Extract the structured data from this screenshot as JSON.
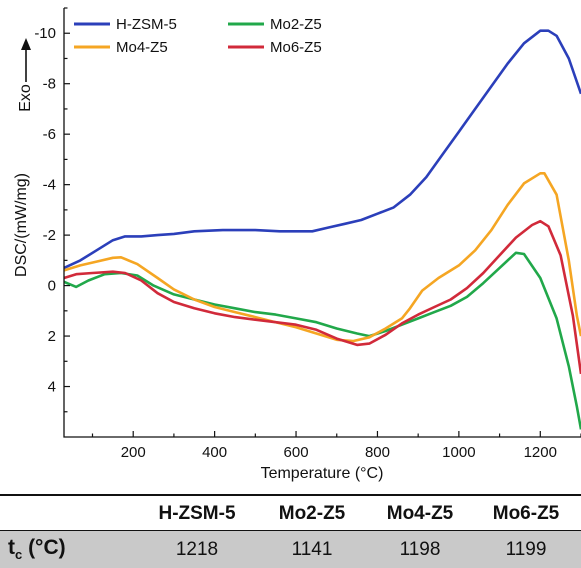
{
  "chart_data": {
    "type": "line",
    "xlabel": "Temperature (°C)",
    "ylabel": "DSC/(mW/mg)",
    "annotation": "Exo",
    "xlim": [
      30,
      1300
    ],
    "ylim": [
      6,
      -11
    ],
    "y_inverted": true,
    "x_ticks": [
      200,
      400,
      600,
      800,
      1000,
      1200
    ],
    "y_ticks": [
      -10,
      -8,
      -6,
      -4,
      -2,
      0,
      2,
      4
    ],
    "legend_position": "top-left",
    "grid": false,
    "series": [
      {
        "name": "H-ZSM-5",
        "color": "#2b3fba",
        "points": [
          [
            30,
            -0.7
          ],
          [
            70,
            -1.0
          ],
          [
            110,
            -1.4
          ],
          [
            150,
            -1.8
          ],
          [
            180,
            -1.95
          ],
          [
            220,
            -1.95
          ],
          [
            260,
            -2.0
          ],
          [
            300,
            -2.05
          ],
          [
            350,
            -2.15
          ],
          [
            420,
            -2.2
          ],
          [
            500,
            -2.2
          ],
          [
            560,
            -2.15
          ],
          [
            600,
            -2.15
          ],
          [
            640,
            -2.15
          ],
          [
            680,
            -2.3
          ],
          [
            720,
            -2.45
          ],
          [
            760,
            -2.6
          ],
          [
            800,
            -2.85
          ],
          [
            840,
            -3.1
          ],
          [
            880,
            -3.6
          ],
          [
            920,
            -4.3
          ],
          [
            960,
            -5.2
          ],
          [
            1000,
            -6.1
          ],
          [
            1040,
            -7.0
          ],
          [
            1080,
            -7.9
          ],
          [
            1120,
            -8.8
          ],
          [
            1160,
            -9.6
          ],
          [
            1200,
            -10.1
          ],
          [
            1220,
            -10.1
          ],
          [
            1240,
            -9.9
          ],
          [
            1270,
            -9.0
          ],
          [
            1300,
            -7.6
          ]
        ]
      },
      {
        "name": "Mo2-Z5",
        "color": "#21a84a",
        "points": [
          [
            30,
            -0.15
          ],
          [
            60,
            0.05
          ],
          [
            90,
            -0.2
          ],
          [
            130,
            -0.45
          ],
          [
            170,
            -0.5
          ],
          [
            210,
            -0.4
          ],
          [
            250,
            0.0
          ],
          [
            300,
            0.35
          ],
          [
            350,
            0.55
          ],
          [
            400,
            0.75
          ],
          [
            450,
            0.9
          ],
          [
            500,
            1.05
          ],
          [
            550,
            1.15
          ],
          [
            600,
            1.3
          ],
          [
            650,
            1.45
          ],
          [
            700,
            1.7
          ],
          [
            750,
            1.9
          ],
          [
            780,
            2.0
          ],
          [
            820,
            1.8
          ],
          [
            860,
            1.55
          ],
          [
            900,
            1.3
          ],
          [
            940,
            1.05
          ],
          [
            980,
            0.8
          ],
          [
            1020,
            0.45
          ],
          [
            1060,
            -0.1
          ],
          [
            1100,
            -0.7
          ],
          [
            1140,
            -1.3
          ],
          [
            1160,
            -1.25
          ],
          [
            1200,
            -0.3
          ],
          [
            1240,
            1.3
          ],
          [
            1270,
            3.2
          ],
          [
            1290,
            4.8
          ],
          [
            1300,
            5.7
          ]
        ]
      },
      {
        "name": "Mo4-Z5",
        "color": "#f5a623",
        "points": [
          [
            30,
            -0.6
          ],
          [
            70,
            -0.8
          ],
          [
            110,
            -0.95
          ],
          [
            150,
            -1.1
          ],
          [
            170,
            -1.12
          ],
          [
            210,
            -0.85
          ],
          [
            260,
            -0.3
          ],
          [
            300,
            0.15
          ],
          [
            350,
            0.55
          ],
          [
            400,
            0.85
          ],
          [
            450,
            1.05
          ],
          [
            500,
            1.25
          ],
          [
            550,
            1.45
          ],
          [
            600,
            1.65
          ],
          [
            650,
            1.9
          ],
          [
            700,
            2.15
          ],
          [
            740,
            2.2
          ],
          [
            780,
            2.05
          ],
          [
            820,
            1.7
          ],
          [
            860,
            1.3
          ],
          [
            880,
            0.9
          ],
          [
            910,
            0.2
          ],
          [
            950,
            -0.3
          ],
          [
            1000,
            -0.8
          ],
          [
            1040,
            -1.4
          ],
          [
            1080,
            -2.2
          ],
          [
            1120,
            -3.2
          ],
          [
            1160,
            -4.05
          ],
          [
            1200,
            -4.45
          ],
          [
            1210,
            -4.45
          ],
          [
            1240,
            -3.6
          ],
          [
            1270,
            -1.0
          ],
          [
            1290,
            1.2
          ],
          [
            1300,
            2.0
          ]
        ]
      },
      {
        "name": "Mo6-Z5",
        "color": "#d12a3a",
        "points": [
          [
            30,
            -0.3
          ],
          [
            60,
            -0.45
          ],
          [
            100,
            -0.5
          ],
          [
            150,
            -0.55
          ],
          [
            180,
            -0.5
          ],
          [
            220,
            -0.2
          ],
          [
            260,
            0.3
          ],
          [
            300,
            0.65
          ],
          [
            350,
            0.9
          ],
          [
            400,
            1.1
          ],
          [
            450,
            1.25
          ],
          [
            500,
            1.35
          ],
          [
            550,
            1.45
          ],
          [
            600,
            1.55
          ],
          [
            650,
            1.75
          ],
          [
            700,
            2.1
          ],
          [
            750,
            2.35
          ],
          [
            780,
            2.3
          ],
          [
            820,
            1.95
          ],
          [
            860,
            1.5
          ],
          [
            900,
            1.15
          ],
          [
            940,
            0.85
          ],
          [
            980,
            0.55
          ],
          [
            1020,
            0.1
          ],
          [
            1060,
            -0.5
          ],
          [
            1100,
            -1.2
          ],
          [
            1140,
            -1.9
          ],
          [
            1180,
            -2.4
          ],
          [
            1200,
            -2.55
          ],
          [
            1220,
            -2.35
          ],
          [
            1250,
            -1.2
          ],
          [
            1280,
            1.2
          ],
          [
            1300,
            3.5
          ]
        ]
      }
    ]
  },
  "table": {
    "headers": [
      "H-ZSM-5",
      "Mo2-Z5",
      "Mo4-Z5",
      "Mo6-Z5"
    ],
    "row_label": "t",
    "row_label_sub": "c",
    "row_label_unit": " (°C)",
    "values": [
      "1218",
      "1141",
      "1198",
      "1199"
    ]
  }
}
